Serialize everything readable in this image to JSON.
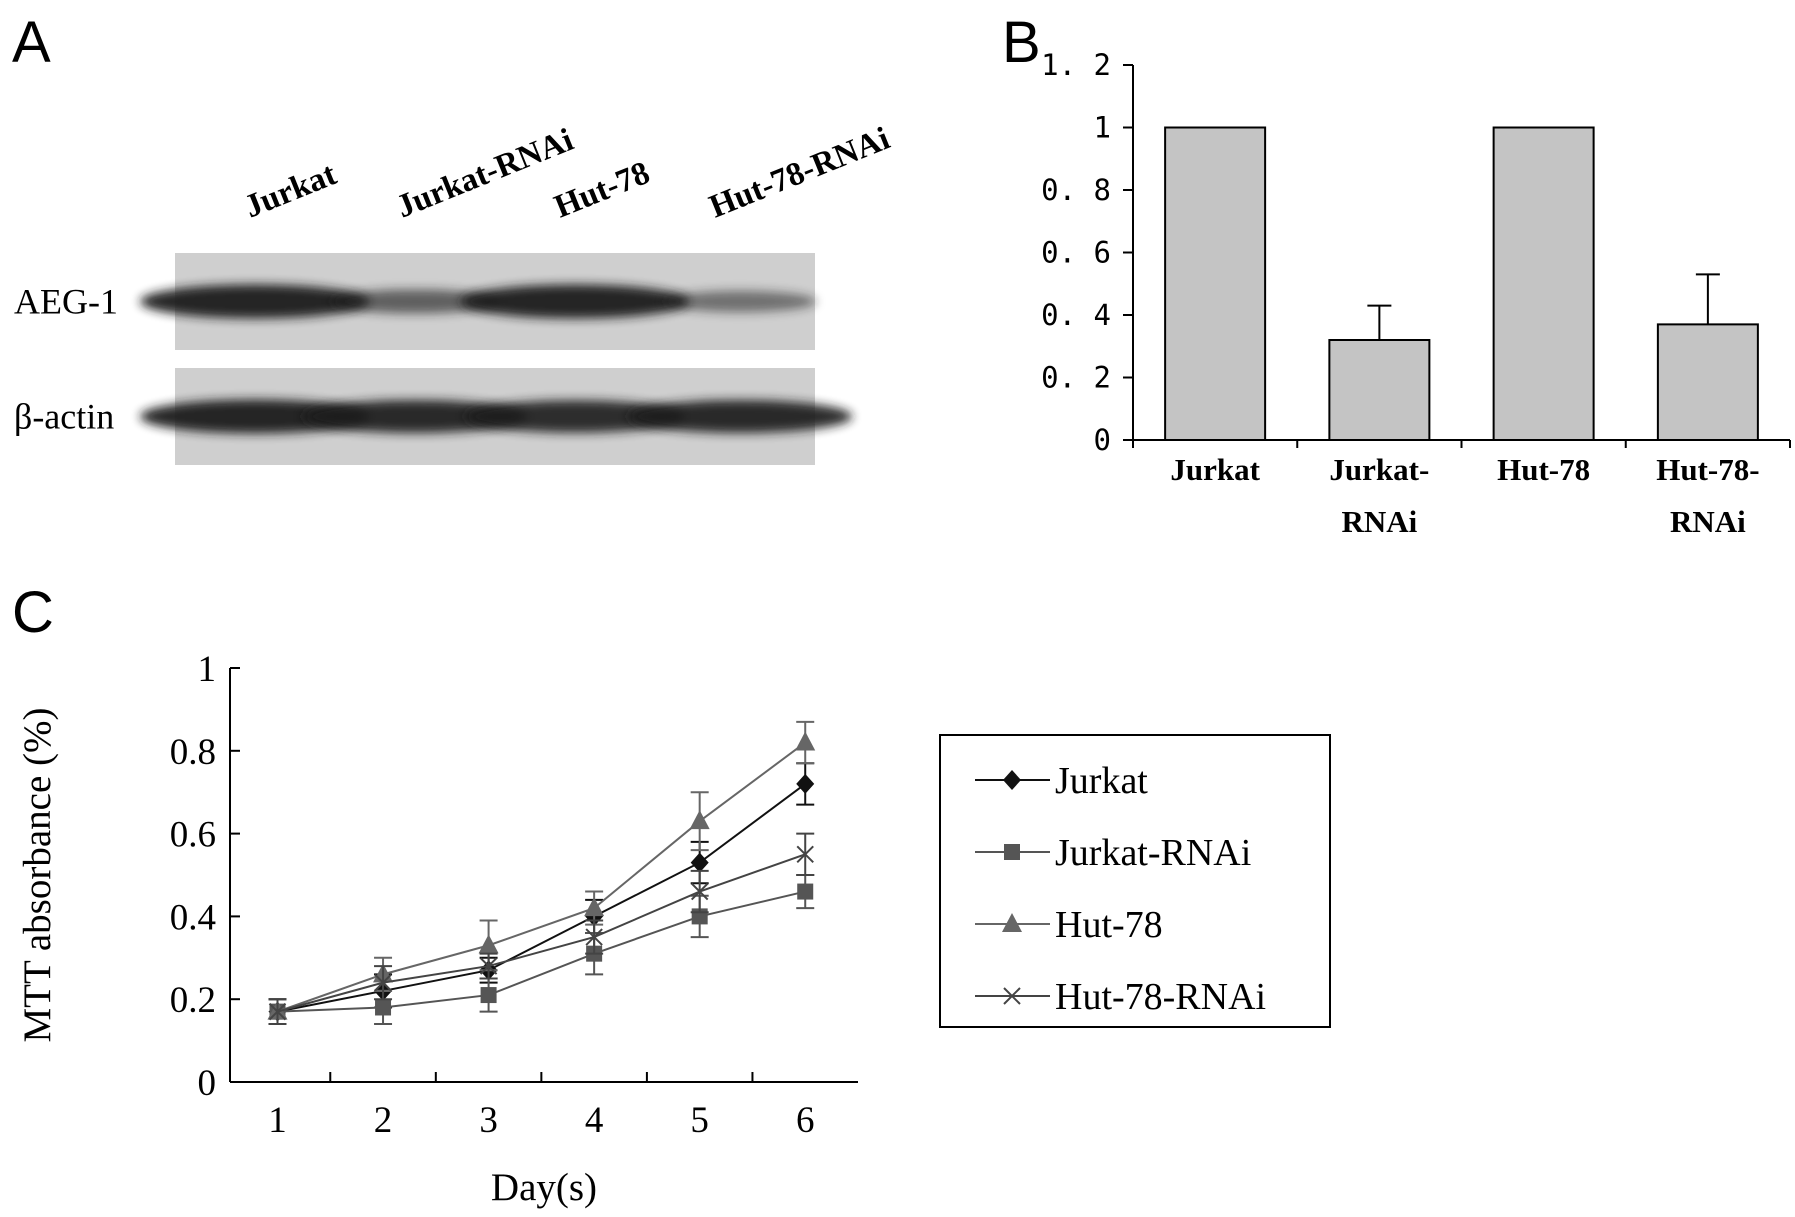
{
  "panels": {
    "a": {
      "letter": "A",
      "lanes": [
        "Jurkat",
        "Jurkat-RNAi",
        "Hut-78",
        "Hut-78-RNAi"
      ],
      "rows": [
        {
          "label": "AEG-1",
          "band_intensity": [
            1.0,
            0.45,
            1.0,
            0.3
          ]
        },
        {
          "label": "β-actin",
          "band_intensity": [
            1.0,
            0.95,
            0.92,
            0.95
          ]
        }
      ]
    },
    "b": {
      "letter": "B"
    },
    "c": {
      "letter": "C"
    }
  },
  "colors": {
    "bar_fill": "#c4c4c4",
    "blot_bg": "#cfcfcf",
    "band": "#1f1f1f",
    "jurkat": "#111111",
    "jurkat_rnai": "#555555",
    "hut78": "#666666",
    "hut78_rnai": "#444444"
  },
  "chart_data": [
    {
      "type": "bar",
      "categories": [
        [
          "Jurkat"
        ],
        [
          "Jurkat-",
          "RNAi"
        ],
        [
          "Hut-78"
        ],
        [
          "Hut-78-",
          "RNAi"
        ]
      ],
      "values": [
        1.0,
        0.32,
        1.0,
        0.37
      ],
      "errors": [
        0,
        0.11,
        0,
        0.16
      ],
      "ylim": [
        0,
        1.2
      ],
      "yticks": [
        "0",
        "0. 2",
        "0. 4",
        "0. 6",
        "0. 8",
        "1",
        "1. 2"
      ],
      "grid": false
    },
    {
      "type": "line",
      "x": [
        1,
        2,
        3,
        4,
        5,
        6
      ],
      "xticks": [
        "1",
        "2",
        "3",
        "4",
        "5",
        "6"
      ],
      "xlabel": "Day(s)",
      "ylabel": "MTT absorbance (%)",
      "ylim": [
        0,
        1
      ],
      "yticks": [
        "0",
        "0.2",
        "0.4",
        "0.6",
        "0.8",
        "1"
      ],
      "grid": false,
      "legend": "right",
      "series": [
        {
          "name": "Jurkat",
          "marker": "diamond",
          "values": [
            0.17,
            0.22,
            0.27,
            0.4,
            0.53,
            0.72
          ],
          "errors": [
            0.03,
            0.04,
            0.03,
            0.04,
            0.05,
            0.05
          ]
        },
        {
          "name": "Jurkat-RNAi",
          "marker": "square",
          "values": [
            0.17,
            0.18,
            0.21,
            0.31,
            0.4,
            0.46
          ],
          "errors": [
            0.03,
            0.04,
            0.04,
            0.05,
            0.05,
            0.04
          ]
        },
        {
          "name": "Hut-78",
          "marker": "triangle",
          "values": [
            0.17,
            0.26,
            0.33,
            0.42,
            0.63,
            0.82
          ],
          "errors": [
            0.03,
            0.04,
            0.06,
            0.04,
            0.07,
            0.05
          ]
        },
        {
          "name": "Hut-78-RNAi",
          "marker": "x",
          "values": [
            0.17,
            0.24,
            0.28,
            0.35,
            0.46,
            0.55
          ],
          "errors": [
            0.03,
            0.04,
            0.03,
            0.04,
            0.05,
            0.05
          ]
        }
      ]
    }
  ]
}
